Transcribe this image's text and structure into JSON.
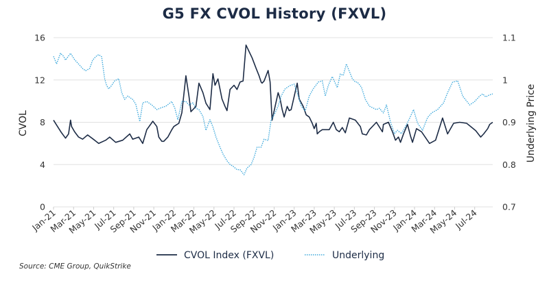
{
  "chart_data": {
    "type": "line",
    "title": "G5 FX CVOL History (FXVL)",
    "xlabel": "",
    "ylabel": "CVOL",
    "y2label": "Underlying Price",
    "x_unit": "months since Jan-2021",
    "xlim": [
      0,
      43.8
    ],
    "ylim": [
      0,
      16
    ],
    "y2lim": [
      0.7,
      1.1
    ],
    "yticks": [
      "0",
      "4",
      "8",
      "12",
      "16"
    ],
    "ytick_values": [
      0,
      4,
      8,
      12,
      16
    ],
    "y2ticks": [
      "0.7",
      "0.8",
      "0.9",
      "1",
      "1.1"
    ],
    "y2tick_values": [
      0.7,
      0.8,
      0.9,
      1.0,
      1.1
    ],
    "xticks": [
      "Jan-21",
      "Mar-21",
      "May-21",
      "Jul-21",
      "Sep-21",
      "Nov-21",
      "Jan-22",
      "Mar-22",
      "May-22",
      "Jul-22",
      "Sep-22",
      "Nov-22",
      "Jan-23",
      "Mar-23",
      "May-23",
      "Jul-23",
      "Sep-23",
      "Nov-23",
      "Jan-24",
      "Mar-24",
      "May-24",
      "Jul-24"
    ],
    "xtick_values": [
      0,
      2,
      4,
      6,
      8,
      10,
      12,
      14,
      16,
      18,
      20,
      22,
      24,
      26,
      28,
      30,
      32,
      34,
      36,
      38,
      40,
      42
    ],
    "grid": true,
    "legend_position": "bottom-center",
    "series": [
      {
        "name": "CVOL Index (FXVL)",
        "axis": "left",
        "style": "solid",
        "color": "#1c2b45",
        "x": [
          0,
          0.4,
          0.8,
          1.2,
          1.5,
          1.7,
          1.8,
          2.1,
          2.5,
          2.9,
          3.4,
          4.1,
          4.5,
          5.2,
          5.6,
          6.2,
          6.9,
          7.6,
          7.9,
          8.5,
          8.9,
          9.3,
          9.9,
          10.3,
          10.5,
          10.8,
          11.0,
          11.4,
          11.8,
          12.0,
          12.5,
          12.8,
          13.2,
          13.5,
          13.7,
          13.9,
          14.0,
          14.2,
          14.5,
          14.9,
          15.2,
          15.6,
          15.9,
          16.1,
          16.4,
          16.8,
          17.1,
          17.3,
          17.6,
          18.0,
          18.3,
          18.6,
          18.9,
          19.2,
          19.5,
          19.8,
          20.2,
          20.5,
          20.7,
          20.8,
          21.0,
          21.4,
          21.6,
          21.8,
          22.1,
          22.4,
          22.6,
          22.8,
          23.0,
          23.3,
          23.5,
          23.7,
          24.3,
          24.5,
          24.9,
          25.2,
          25.5,
          25.8,
          26.0,
          26.2,
          26.3,
          26.5,
          26.8,
          27.5,
          27.9,
          28.2,
          28.5,
          28.8,
          29.1,
          29.5,
          30.1,
          30.6,
          30.8,
          31.2,
          31.5,
          32.2,
          32.8,
          32.9,
          33.4,
          33.8,
          34.1,
          34.4,
          34.6,
          34.9,
          35.3,
          35.6,
          35.8,
          36.2,
          36.7,
          37.5,
          38.1,
          38.8,
          39.3,
          39.9,
          40.5,
          41.2,
          41.6,
          42.1,
          42.6,
          42.9,
          43.3,
          43.5,
          43.8
        ],
        "values": [
          8.2,
          7.6,
          7.0,
          6.5,
          6.9,
          8.2,
          7.6,
          7.1,
          6.6,
          6.4,
          6.8,
          6.3,
          6.0,
          6.3,
          6.6,
          6.1,
          6.3,
          6.9,
          6.4,
          6.6,
          6.0,
          7.3,
          8.1,
          7.6,
          6.6,
          6.2,
          6.2,
          6.6,
          7.3,
          7.6,
          7.9,
          8.9,
          12.4,
          10.5,
          9.0,
          9.2,
          9.3,
          9.5,
          11.7,
          10.8,
          9.8,
          9.2,
          12.6,
          11.5,
          12.1,
          10.2,
          9.5,
          9.1,
          11.1,
          11.5,
          11.1,
          11.8,
          11.9,
          15.3,
          14.7,
          14.1,
          13.1,
          12.4,
          11.8,
          11.7,
          11.9,
          12.9,
          11.8,
          8.2,
          9.5,
          10.8,
          10.2,
          9.2,
          8.5,
          9.5,
          9.1,
          9.2,
          11.7,
          10.2,
          9.5,
          8.7,
          8.5,
          7.9,
          7.4,
          7.9,
          6.9,
          7.1,
          7.3,
          7.3,
          8.0,
          7.3,
          7.1,
          7.5,
          7.0,
          8.4,
          8.2,
          7.6,
          6.9,
          6.8,
          7.3,
          8.0,
          7.1,
          7.8,
          8.0,
          7.1,
          6.3,
          6.6,
          6.1,
          6.9,
          7.8,
          6.7,
          6.1,
          7.4,
          7.1,
          6.0,
          6.3,
          8.4,
          6.9,
          7.9,
          8.0,
          7.9,
          7.6,
          7.2,
          6.6,
          6.9,
          7.4,
          7.8,
          8.0
        ]
      },
      {
        "name": "Underlying",
        "axis": "right",
        "style": "dotted",
        "color": "#3fa9dc",
        "x": [
          0,
          0.3,
          0.7,
          1.0,
          1.2,
          1.7,
          2.1,
          2.6,
          2.9,
          3.2,
          3.6,
          3.9,
          4.2,
          4.5,
          4.8,
          5.1,
          5.3,
          5.5,
          5.8,
          6.1,
          6.5,
          6.8,
          7.1,
          7.4,
          7.9,
          8.2,
          8.6,
          8.9,
          9.3,
          9.8,
          10.3,
          10.8,
          11.2,
          11.8,
          12.1,
          12.4,
          12.8,
          13.2,
          13.5,
          13.9,
          14.2,
          14.5,
          14.9,
          15.2,
          15.6,
          15.9,
          16.2,
          16.6,
          16.9,
          17.3,
          17.6,
          17.9,
          18.3,
          18.6,
          19.0,
          19.3,
          19.7,
          20.0,
          20.3,
          20.7,
          21.0,
          21.4,
          21.7,
          22.1,
          22.4,
          22.7,
          23.1,
          23.6,
          24.0,
          24.4,
          24.7,
          25.1,
          25.5,
          25.9,
          26.4,
          26.8,
          27.1,
          27.4,
          27.8,
          28.3,
          28.6,
          28.9,
          29.2,
          29.8,
          30.1,
          30.3,
          30.7,
          31.1,
          31.5,
          32.2,
          32.5,
          32.9,
          33.2,
          33.6,
          34.0,
          34.3,
          34.7,
          35.2,
          35.6,
          35.9,
          36.3,
          36.8,
          37.3,
          37.7,
          38.3,
          38.9,
          39.3,
          39.8,
          40.3,
          40.8,
          41.5,
          42.0,
          42.5,
          42.8,
          43.1,
          43.5,
          43.8
        ],
        "values": [
          1.056,
          1.038,
          1.063,
          1.056,
          1.047,
          1.063,
          1.048,
          1.035,
          1.027,
          1.022,
          1.027,
          1.047,
          1.055,
          1.06,
          1.055,
          1.003,
          0.987,
          0.979,
          0.987,
          0.998,
          1.003,
          0.97,
          0.954,
          0.962,
          0.954,
          0.943,
          0.902,
          0.946,
          0.949,
          0.941,
          0.93,
          0.935,
          0.938,
          0.949,
          0.933,
          0.906,
          0.949,
          0.949,
          0.941,
          0.946,
          0.933,
          0.93,
          0.914,
          0.881,
          0.906,
          0.889,
          0.865,
          0.841,
          0.825,
          0.809,
          0.8,
          0.796,
          0.788,
          0.788,
          0.776,
          0.792,
          0.8,
          0.817,
          0.841,
          0.841,
          0.86,
          0.857,
          0.906,
          0.922,
          0.938,
          0.962,
          0.979,
          0.987,
          0.99,
          0.962,
          0.938,
          0.927,
          0.962,
          0.979,
          0.995,
          0.998,
          0.962,
          0.987,
          1.008,
          0.982,
          1.014,
          1.011,
          1.038,
          1.003,
          0.995,
          0.995,
          0.983,
          0.954,
          0.938,
          0.93,
          0.933,
          0.922,
          0.941,
          0.901,
          0.873,
          0.881,
          0.873,
          0.894,
          0.914,
          0.93,
          0.898,
          0.881,
          0.911,
          0.922,
          0.93,
          0.946,
          0.97,
          0.995,
          0.998,
          0.962,
          0.941,
          0.949,
          0.962,
          0.967,
          0.96,
          0.965,
          0.967
        ]
      }
    ]
  },
  "legend": {
    "items": [
      {
        "label": "CVOL Index (FXVL)",
        "color": "#1c2b45",
        "style": "solid"
      },
      {
        "label": "Underlying",
        "color": "#3fa9dc",
        "style": "dotted"
      }
    ]
  },
  "source": "Source: CME Group, QuikStrike",
  "colors": {
    "title": "#1c2b45",
    "grid": "#e0e0e0",
    "text": "#333333"
  }
}
